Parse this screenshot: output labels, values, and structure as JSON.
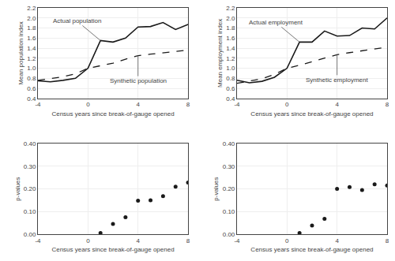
{
  "chart_data": [
    {
      "type": "line",
      "x": [
        -4,
        -3,
        -2,
        -1,
        0,
        1,
        2,
        3,
        4,
        5,
        6,
        7,
        8
      ],
      "series": [
        {
          "name": "Actual population",
          "color": "#1a1a1a",
          "line_style": "solid",
          "values": [
            0.75,
            0.73,
            0.76,
            0.8,
            1.0,
            1.55,
            1.52,
            1.6,
            1.82,
            1.83,
            1.91,
            1.77,
            1.87
          ]
        },
        {
          "name": "Synthetic population",
          "color": "#1a1a1a",
          "line_style": "dashed",
          "values": [
            0.76,
            0.79,
            0.83,
            0.89,
            1.0,
            1.05,
            1.1,
            1.18,
            1.25,
            1.28,
            1.31,
            1.34,
            1.36
          ]
        }
      ],
      "xlabel": "Census years since break-of-gauge opened",
      "ylabel": "Mean population index",
      "xlim": [
        -4,
        8
      ],
      "ylim": [
        0.4,
        2.2
      ],
      "xticks": [
        -4,
        0,
        4,
        8
      ],
      "yticks": [
        0.4,
        0.6,
        0.8,
        {
          "value": 1.0,
          "label": "1.0"
        },
        1.2,
        1.4,
        1.6,
        1.8,
        {
          "value": 2.0,
          "label": "2.0"
        },
        2.2
      ],
      "grid": true
    },
    {
      "type": "line",
      "x": [
        -4,
        -3,
        -2,
        -1,
        0,
        1,
        2,
        3,
        4,
        5,
        6,
        7,
        8
      ],
      "series": [
        {
          "name": "Actual employment",
          "color": "#1a1a1a",
          "line_style": "solid",
          "values": [
            0.76,
            0.71,
            0.74,
            0.82,
            1.0,
            1.52,
            1.52,
            1.74,
            1.64,
            1.65,
            1.8,
            1.78,
            2.0
          ]
        },
        {
          "name": "Synthetic employment",
          "color": "#1a1a1a",
          "line_style": "dashed",
          "values": [
            0.7,
            0.74,
            0.79,
            0.88,
            1.0,
            1.06,
            1.13,
            1.2,
            1.27,
            1.31,
            1.35,
            1.38,
            1.42
          ]
        }
      ],
      "xlabel": "Census years since break-of-gauge opened",
      "ylabel": "Mean employment index",
      "xlim": [
        -4,
        8
      ],
      "ylim": [
        0.4,
        2.2
      ],
      "xticks": [
        -4,
        0,
        4,
        8
      ],
      "yticks": [
        0.4,
        0.6,
        0.8,
        {
          "value": 1.0,
          "label": "1.0"
        },
        1.2,
        1.4,
        1.6,
        1.8,
        {
          "value": 2.0,
          "label": "2.0"
        },
        2.2
      ],
      "grid": true
    },
    {
      "type": "scatter",
      "x": [
        1,
        2,
        3,
        4,
        5,
        6,
        7,
        8
      ],
      "values": [
        0.005,
        0.045,
        0.075,
        0.148,
        0.15,
        0.168,
        0.21,
        0.228
      ],
      "color": "#1a1a1a",
      "marker": "circle",
      "xlabel": "Census years since break-of-gauge opened",
      "ylabel": "p-values",
      "xlim": [
        -4,
        8
      ],
      "ylim": [
        0.0,
        0.4
      ],
      "xticks": [
        -4,
        0,
        4,
        8
      ],
      "yticks": [
        {
          "value": 0.0,
          "label": "0.00"
        },
        {
          "value": 0.1,
          "label": "0.10"
        },
        {
          "value": 0.2,
          "label": "0.20"
        },
        {
          "value": 0.3,
          "label": "0.30"
        },
        {
          "value": 0.4,
          "label": "0.40"
        }
      ],
      "grid": true
    },
    {
      "type": "scatter",
      "x": [
        1,
        2,
        3,
        4,
        5,
        6,
        7,
        8
      ],
      "values": [
        0.005,
        0.038,
        0.068,
        0.2,
        0.208,
        0.195,
        0.22,
        0.215
      ],
      "color": "#1a1a1a",
      "marker": "circle",
      "xlabel": "Census years since break-of-gauge opened",
      "ylabel": "p-values",
      "xlim": [
        -4,
        8
      ],
      "ylim": [
        0.0,
        0.4
      ],
      "xticks": [
        -4,
        0,
        4,
        8
      ],
      "yticks": [
        {
          "value": 0.0,
          "label": "0.00"
        },
        {
          "value": 0.1,
          "label": "0.10"
        },
        {
          "value": 0.2,
          "label": "0.20"
        },
        {
          "value": 0.3,
          "label": "0.30"
        },
        {
          "value": 0.4,
          "label": "0.40"
        }
      ],
      "grid": true
    }
  ]
}
